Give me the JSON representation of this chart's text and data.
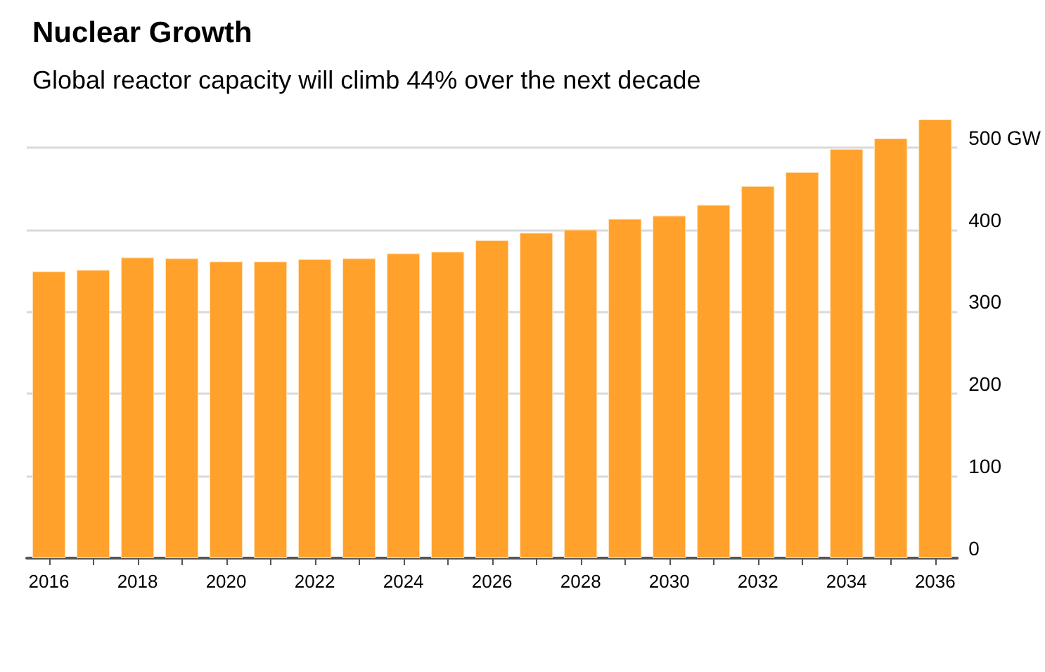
{
  "chart_data": {
    "type": "bar",
    "title": "Nuclear Growth",
    "subtitle": "Global reactor capacity will climb 44% over the next decade",
    "categories": [
      "2016",
      null,
      "2018",
      null,
      "2020",
      null,
      "2022",
      null,
      "2024",
      null,
      "2026",
      null,
      "2028",
      null,
      "2030",
      null,
      "2032",
      null,
      "2034",
      null,
      "2036"
    ],
    "values": [
      349,
      351,
      366,
      365,
      361,
      361,
      364,
      365,
      371,
      373,
      387,
      396,
      400,
      413,
      417,
      430,
      453,
      470,
      498,
      511,
      534
    ],
    "color": "#ffa12b",
    "ylim": [
      0,
      534
    ],
    "yticks": [
      0,
      100,
      200,
      300,
      400,
      {
        "value": 500,
        "label": "500 GW"
      }
    ],
    "grid": "y"
  }
}
